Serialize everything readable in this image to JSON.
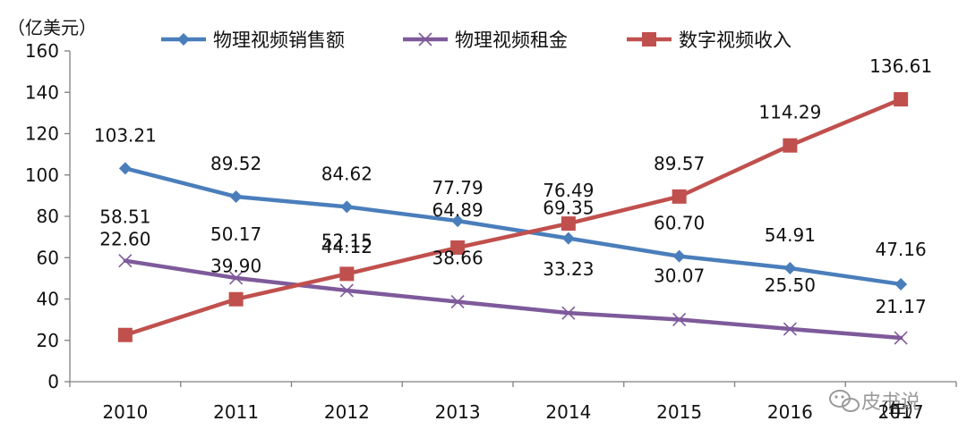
{
  "chart_data": {
    "type": "line",
    "y_unit_label": "（亿美元）",
    "x_unit_label": "（年）",
    "categories": [
      "2010",
      "2011",
      "2012",
      "2013",
      "2014",
      "2015",
      "2016",
      "2017"
    ],
    "ylim": [
      0,
      160
    ],
    "yticks": [
      "0",
      "20",
      "40",
      "60",
      "80",
      "100",
      "120",
      "140",
      "160"
    ],
    "grid": false,
    "legend_position": "top",
    "series": [
      {
        "name": "物理视频销售额",
        "color": "#4a7ebb",
        "marker": "diamond",
        "values": [
          103.21,
          89.52,
          84.62,
          77.79,
          69.35,
          60.7,
          54.91,
          47.16
        ],
        "labels": [
          "103.21",
          "89.52",
          "84.62",
          "77.79",
          "69.35",
          "60.70",
          "54.91",
          "47.16"
        ]
      },
      {
        "name": "物理视频租金",
        "color": "#7e5a9b",
        "marker": "x",
        "values": [
          58.51,
          50.17,
          44.12,
          38.66,
          33.23,
          30.07,
          25.5,
          21.17
        ],
        "labels": [
          "58.51",
          "50.17",
          "44.12",
          "38.66",
          "33.23",
          "30.07",
          "25.50",
          "21.17"
        ]
      },
      {
        "name": "数字视频收入",
        "color": "#c0504d",
        "marker": "square",
        "values": [
          22.6,
          39.9,
          52.15,
          64.89,
          76.49,
          89.57,
          114.29,
          136.61
        ],
        "labels": [
          "22.60",
          "39.90",
          "52.15",
          "64.89",
          "76.49",
          "89.57",
          "114.29",
          "136.61"
        ]
      }
    ]
  },
  "watermark": {
    "text": "皮书说",
    "icon": "wechat-icon"
  }
}
